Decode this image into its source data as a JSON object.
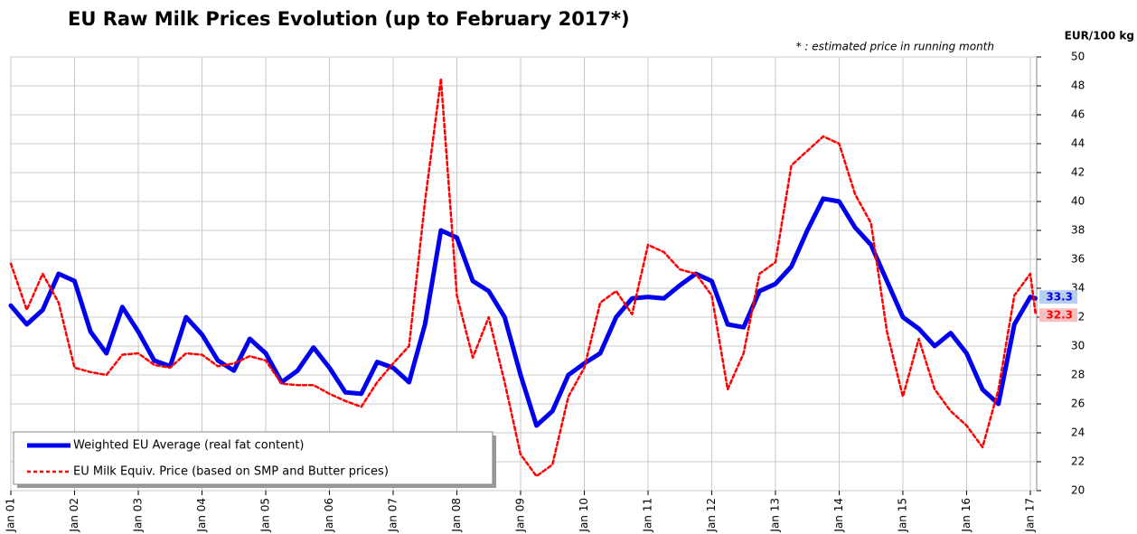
{
  "chart_data": {
    "type": "line",
    "title": "EU Raw Milk Prices Evolution (up to  February 2017*)",
    "annotation": "* : estimated price in running month",
    "ylabel": "EUR/100 kg",
    "x": [
      2001.0,
      2001.25,
      2001.5,
      2001.75,
      2002.0,
      2002.25,
      2002.5,
      2002.75,
      2003.0,
      2003.25,
      2003.5,
      2003.75,
      2004.0,
      2004.25,
      2004.5,
      2004.75,
      2005.0,
      2005.25,
      2005.5,
      2005.75,
      2006.0,
      2006.25,
      2006.5,
      2006.75,
      2007.0,
      2007.25,
      2007.5,
      2007.75,
      2008.0,
      2008.25,
      2008.5,
      2008.75,
      2009.0,
      2009.25,
      2009.5,
      2009.75,
      2010.0,
      2010.25,
      2010.5,
      2010.75,
      2011.0,
      2011.25,
      2011.5,
      2011.75,
      2012.0,
      2012.25,
      2012.5,
      2012.75,
      2013.0,
      2013.25,
      2013.5,
      2013.75,
      2014.0,
      2014.25,
      2014.5,
      2014.75,
      2015.0,
      2015.25,
      2015.5,
      2015.75,
      2016.0,
      2016.25,
      2016.5,
      2016.75,
      2017.0,
      2017.08
    ],
    "series": [
      {
        "name": "Weighted EU Average (real fat content)",
        "color": "#0000ee",
        "style": "solid",
        "values": [
          32.8,
          31.5,
          32.5,
          35.0,
          34.5,
          31.0,
          29.5,
          32.7,
          31.0,
          29.0,
          28.6,
          32.0,
          30.8,
          29.0,
          28.3,
          30.5,
          29.5,
          27.5,
          28.3,
          29.9,
          28.5,
          26.8,
          26.7,
          28.9,
          28.5,
          27.5,
          31.5,
          38.0,
          37.5,
          34.5,
          33.8,
          32.0,
          28.0,
          24.5,
          25.5,
          28.0,
          28.8,
          29.5,
          32.0,
          33.3,
          33.4,
          33.3,
          34.2,
          35.0,
          34.5,
          31.5,
          31.3,
          33.8,
          34.3,
          35.5,
          38.0,
          40.2,
          40.0,
          38.2,
          37.0,
          34.5,
          32.0,
          31.2,
          30.0,
          30.9,
          29.5,
          27.0,
          26.0,
          31.5,
          33.4,
          33.3
        ]
      },
      {
        "name": "EU Milk Equiv. Price (based on SMP and Butter prices)",
        "color": "#ff0000",
        "style": "dashed",
        "values": [
          35.7,
          32.5,
          35.0,
          33.0,
          28.5,
          28.2,
          28.0,
          29.4,
          29.5,
          28.7,
          28.5,
          29.5,
          29.4,
          28.6,
          28.8,
          29.3,
          29.0,
          27.4,
          27.3,
          27.3,
          26.7,
          26.2,
          25.8,
          27.5,
          28.8,
          30.0,
          40.0,
          48.5,
          33.5,
          29.2,
          32.0,
          27.5,
          22.5,
          21.0,
          21.8,
          26.5,
          28.5,
          33.0,
          33.8,
          32.2,
          37.0,
          36.5,
          35.3,
          35.0,
          33.5,
          27.0,
          29.5,
          35.0,
          35.8,
          42.5,
          43.5,
          44.5,
          44.0,
          40.5,
          38.5,
          31.0,
          26.5,
          30.5,
          27.0,
          25.5,
          24.5,
          23.0,
          27.0,
          33.5,
          35.0,
          32.3
        ]
      }
    ],
    "xlim": [
      2001,
      2017.1
    ],
    "xticks": [
      {
        "value": 2001,
        "label": "Jan 01"
      },
      {
        "value": 2002,
        "label": "Jan 02"
      },
      {
        "value": 2003,
        "label": "Jan 03"
      },
      {
        "value": 2004,
        "label": "Jan 04"
      },
      {
        "value": 2005,
        "label": "Jan 05"
      },
      {
        "value": 2006,
        "label": "Jan 06"
      },
      {
        "value": 2007,
        "label": "Jan 07"
      },
      {
        "value": 2008,
        "label": "Jan 08"
      },
      {
        "value": 2009,
        "label": "Jan 09"
      },
      {
        "value": 2010,
        "label": "Jan 10"
      },
      {
        "value": 2011,
        "label": "Jan 11"
      },
      {
        "value": 2012,
        "label": "Jan 12"
      },
      {
        "value": 2013,
        "label": "Jan 13"
      },
      {
        "value": 2014,
        "label": "Jan 14"
      },
      {
        "value": 2015,
        "label": "Jan 15"
      },
      {
        "value": 2016,
        "label": "Jan 16"
      },
      {
        "value": 2017,
        "label": "Jan 17"
      }
    ],
    "ylim": [
      20,
      50
    ],
    "yticks": [
      20,
      22,
      24,
      26,
      28,
      30,
      32,
      34,
      36,
      38,
      40,
      42,
      44,
      46,
      48,
      50
    ],
    "grid": true,
    "legend": "lower left"
  }
}
